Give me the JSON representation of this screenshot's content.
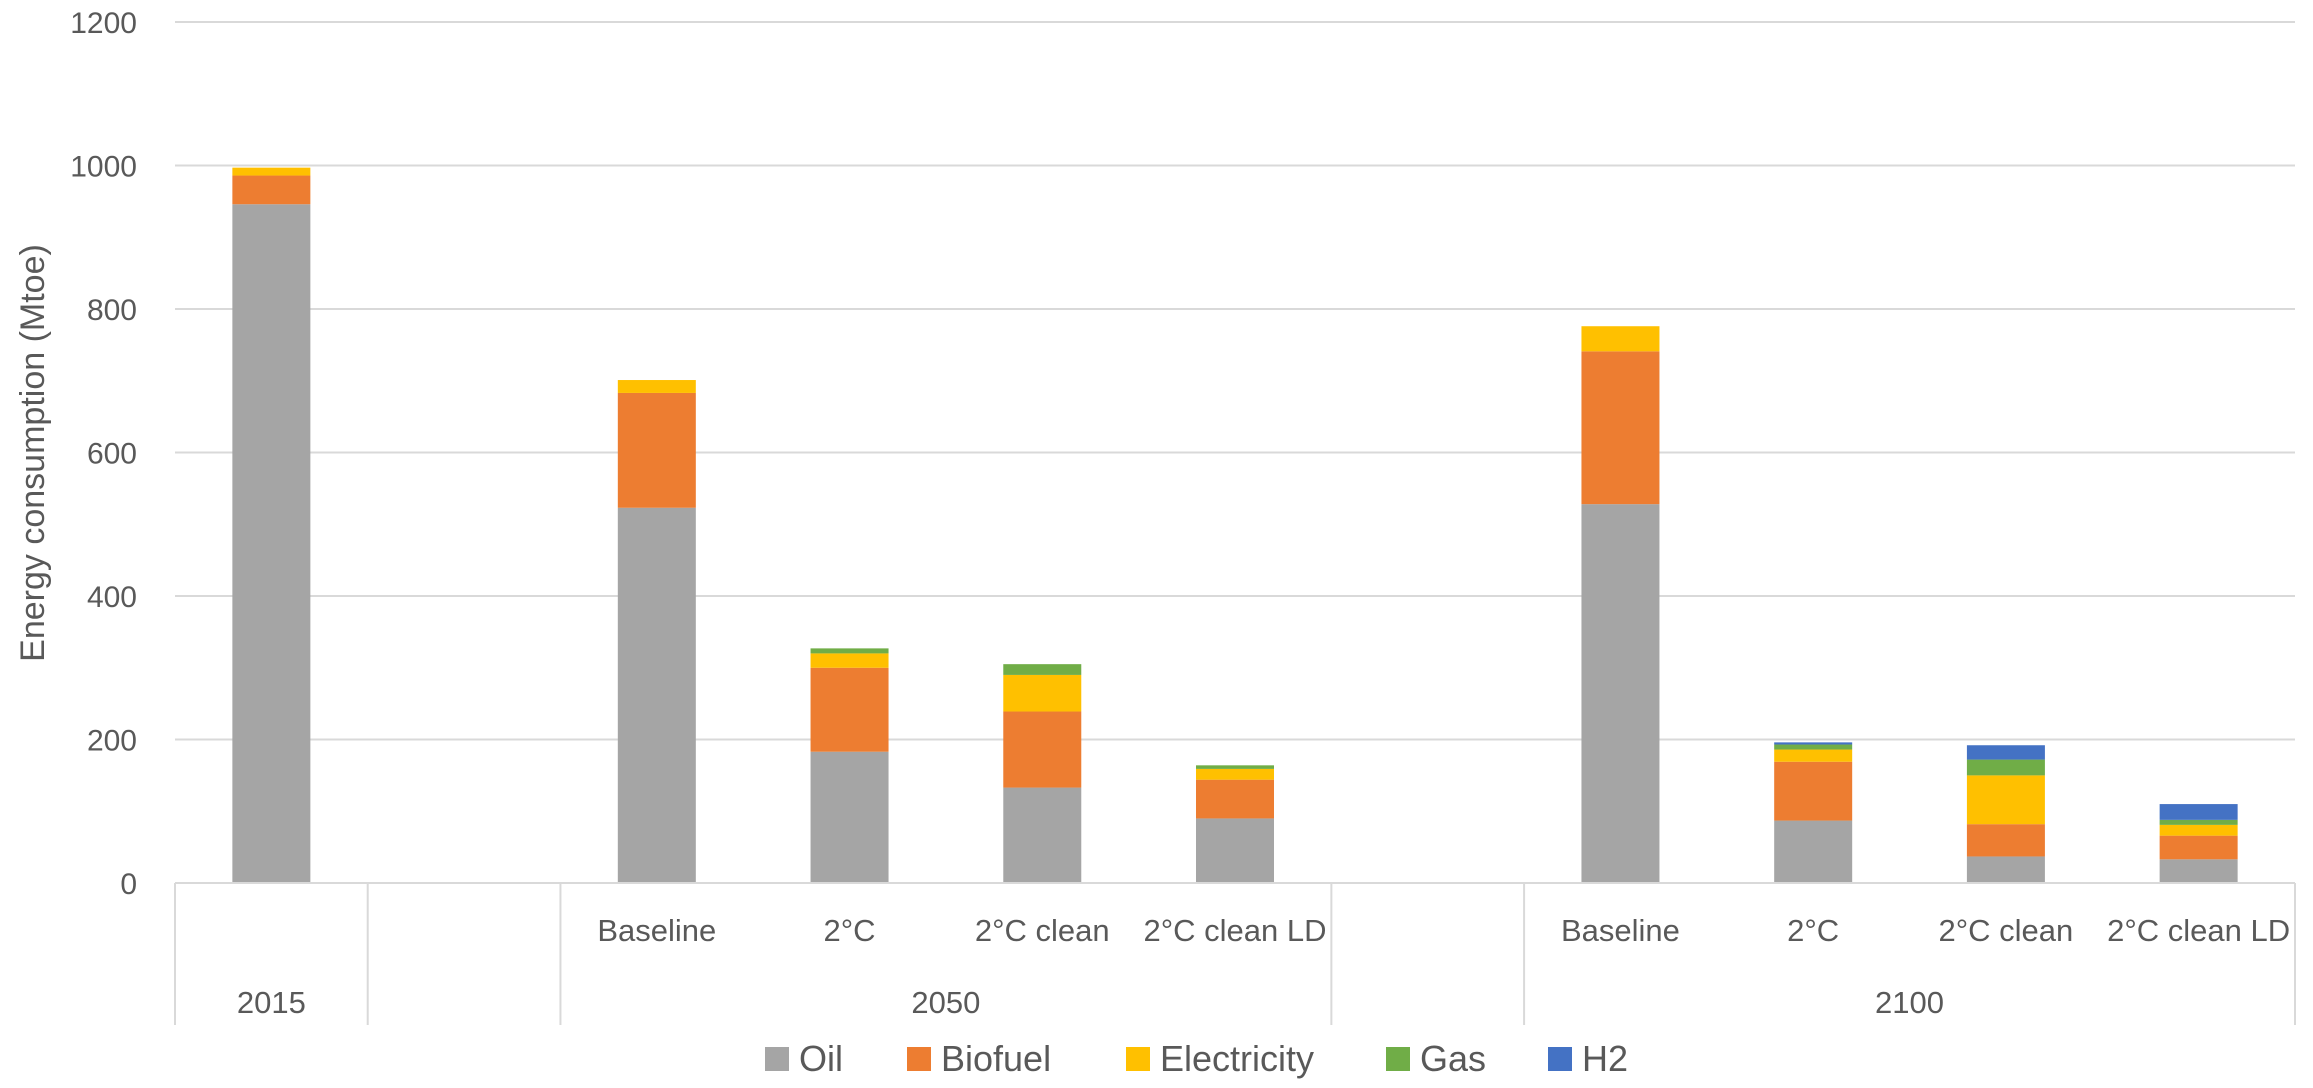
{
  "chart_data": {
    "type": "bar",
    "stacked": true,
    "ylabel": "Energy consumption (Mtoe)",
    "ylim": [
      0,
      1200
    ],
    "yticks": [
      0,
      200,
      400,
      600,
      800,
      1000,
      1200
    ],
    "grid": true,
    "legend_position": "bottom",
    "slots": [
      {
        "label": "",
        "group": "2015"
      },
      {
        "label": "",
        "group": ""
      },
      {
        "label": "Baseline",
        "group": "2050"
      },
      {
        "label": "2°C",
        "group": "2050"
      },
      {
        "label": "2°C clean",
        "group": "2050"
      },
      {
        "label": "2°C clean LD",
        "group": "2050"
      },
      {
        "label": "",
        "group": ""
      },
      {
        "label": "Baseline",
        "group": "2100"
      },
      {
        "label": "2°C",
        "group": "2100"
      },
      {
        "label": "2°C clean",
        "group": "2100"
      },
      {
        "label": "2°C clean LD",
        "group": "2100"
      }
    ],
    "groups": [
      {
        "label": "2015",
        "start": 0,
        "end": 0
      },
      {
        "label": "2050",
        "start": 2,
        "end": 5
      },
      {
        "label": "2100",
        "start": 7,
        "end": 10
      }
    ],
    "series": [
      {
        "name": "Oil",
        "color": "#A5A5A5",
        "values": [
          946,
          null,
          523,
          183,
          133,
          90,
          null,
          528,
          87,
          37,
          33
        ]
      },
      {
        "name": "Biofuel",
        "color": "#ED7D31",
        "values": [
          40,
          null,
          160,
          117,
          106,
          54,
          null,
          213,
          82,
          45,
          33
        ]
      },
      {
        "name": "Electricity",
        "color": "#FFC000",
        "values": [
          11,
          null,
          18,
          20,
          51,
          15,
          null,
          35,
          17,
          68,
          15
        ]
      },
      {
        "name": "Gas",
        "color": "#70AD47",
        "values": [
          0,
          null,
          0,
          7,
          15,
          5,
          null,
          0,
          7,
          22,
          7
        ]
      },
      {
        "name": "H2",
        "color": "#4472C4",
        "values": [
          0,
          null,
          0,
          0,
          0,
          0,
          null,
          0,
          3,
          20,
          22
        ]
      }
    ]
  }
}
